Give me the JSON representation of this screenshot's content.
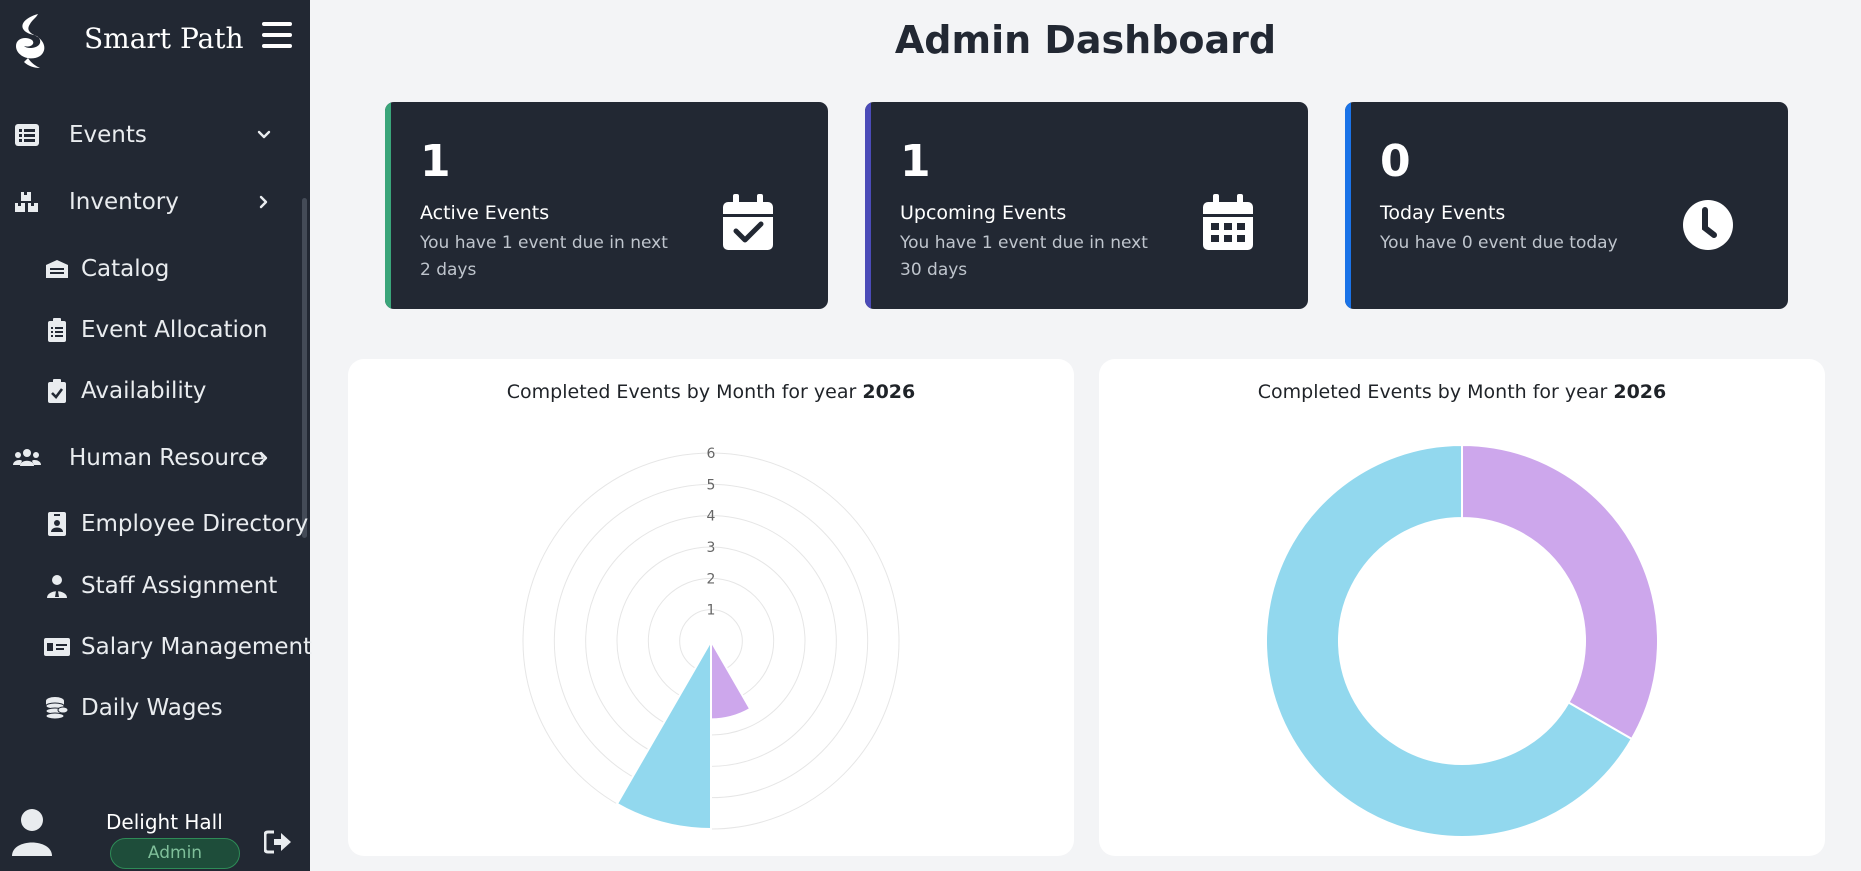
{
  "brand": {
    "name": "Smart Path"
  },
  "sidebar": {
    "items": [
      {
        "label": "Events",
        "icon": "list-icon",
        "chevron": "down"
      },
      {
        "label": "Inventory",
        "icon": "boxes-icon",
        "chevron": "right"
      }
    ],
    "inventory_sub": [
      {
        "label": "Catalog",
        "icon": "warehouse-icon"
      },
      {
        "label": "Event Allocation",
        "icon": "clipboard-list-icon"
      },
      {
        "label": "Availability",
        "icon": "clipboard-check-icon"
      }
    ],
    "hr": {
      "label": "Human Resource",
      "icon": "users-icon",
      "chevron": "right"
    },
    "hr_sub": [
      {
        "label": "Employee Directory",
        "icon": "id-badge-icon"
      },
      {
        "label": "Staff Assignment",
        "icon": "user-tie-icon"
      },
      {
        "label": "Salary Management",
        "icon": "money-check-icon"
      },
      {
        "label": "Daily Wages",
        "icon": "coins-icon"
      }
    ]
  },
  "user": {
    "name": "Delight Hall",
    "role": "Admin"
  },
  "page": {
    "title": "Admin Dashboard"
  },
  "stats": [
    {
      "count": "1",
      "title": "Active Events",
      "desc": "You have 1 event due in next 2 days",
      "accent": "#3aa57a",
      "icon": "calendar-check-icon"
    },
    {
      "count": "1",
      "title": "Upcoming Events",
      "desc": "You have 1 event due in next 30 days",
      "accent": "#4b4bb8",
      "icon": "calendar-days-icon"
    },
    {
      "count": "0",
      "title": "Today Events",
      "desc": "You have 0 event due today",
      "accent": "#1a73e8",
      "icon": "clock-icon"
    }
  ],
  "charts": [
    {
      "title_prefix": "Completed Events by Month for year ",
      "year": "2026"
    },
    {
      "title_prefix": "Completed Events by Month for year ",
      "year": "2026"
    }
  ],
  "chart_data": [
    {
      "type": "polarArea",
      "title": "Completed Events by Month for year 2026",
      "radial_ticks": [
        1,
        2,
        3,
        4,
        5,
        6
      ],
      "rlim": [
        0,
        6
      ],
      "slices": [
        {
          "value": 2.5,
          "color": "#cda7ec"
        },
        {
          "value": 6,
          "color": "#92d8ee"
        }
      ]
    },
    {
      "type": "doughnut",
      "title": "Completed Events by Month for year 2026",
      "slices": [
        {
          "value": 1,
          "color": "#cda7ec"
        },
        {
          "value": 2,
          "color": "#92d8ee"
        }
      ]
    }
  ]
}
